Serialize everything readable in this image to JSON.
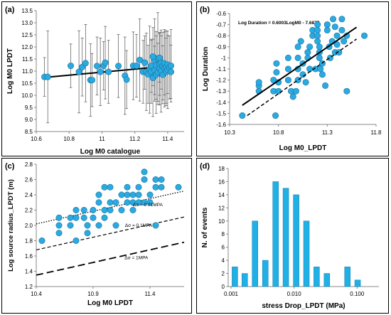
{
  "chart_data": [
    {
      "id": "a",
      "panel_label": "(a)",
      "type": "scatter",
      "title": "",
      "xlabel": "Log M0 catalogue",
      "ylabel": "Log M0 LPDT",
      "xlim": [
        10.6,
        11.5
      ],
      "ylim": [
        8.5,
        13.5
      ],
      "x_ticks": [
        "10.6",
        "10.8",
        "11",
        "11.2",
        "11.4"
      ],
      "y_ticks": [
        "8.5",
        "9.0",
        "9.5",
        "10.0",
        "10.5",
        "11.0",
        "11.5",
        "12.0",
        "12.5",
        "13.0",
        "13.5"
      ],
      "grid": false,
      "trendline": {
        "x": [
          10.67,
          11.42
        ],
        "y": [
          10.75,
          11.22
        ]
      },
      "points": [
        {
          "x": 10.65,
          "y": 10.76,
          "err": 0.8
        },
        {
          "x": 10.67,
          "y": 10.76,
          "err": 1.9
        },
        {
          "x": 10.81,
          "y": 11.22,
          "err": 0.9
        },
        {
          "x": 10.86,
          "y": 10.97,
          "err": 1.7
        },
        {
          "x": 10.88,
          "y": 11.17,
          "err": 1.2
        },
        {
          "x": 10.9,
          "y": 11.33,
          "err": 1.6
        },
        {
          "x": 10.93,
          "y": 10.63,
          "err": 1.5
        },
        {
          "x": 10.94,
          "y": 10.63,
          "err": 1.1
        },
        {
          "x": 10.97,
          "y": 11.21,
          "err": 1.2
        },
        {
          "x": 10.99,
          "y": 10.97,
          "err": 1.4
        },
        {
          "x": 11.01,
          "y": 11.22,
          "err": 1.0
        },
        {
          "x": 11.02,
          "y": 11.35,
          "err": 1.5
        },
        {
          "x": 11.04,
          "y": 10.97,
          "err": 1.3
        },
        {
          "x": 11.1,
          "y": 11.21,
          "err": 1.3
        },
        {
          "x": 11.14,
          "y": 10.81,
          "err": 1.6
        },
        {
          "x": 11.15,
          "y": 10.65,
          "err": 1.2
        },
        {
          "x": 11.19,
          "y": 11.22,
          "err": 1.4
        },
        {
          "x": 11.21,
          "y": 11.22,
          "err": 1.3
        },
        {
          "x": 11.23,
          "y": 11.46,
          "err": 1.7
        },
        {
          "x": 11.25,
          "y": 10.97,
          "err": 1.3
        },
        {
          "x": 11.26,
          "y": 11.35,
          "err": 1.1
        },
        {
          "x": 11.27,
          "y": 10.97,
          "err": 1.6
        },
        {
          "x": 11.28,
          "y": 10.87,
          "err": 1.2
        },
        {
          "x": 11.29,
          "y": 11.06,
          "err": 1.8
        },
        {
          "x": 11.3,
          "y": 10.97,
          "err": 1.3
        },
        {
          "x": 11.3,
          "y": 11.22,
          "err": 1.1
        },
        {
          "x": 11.31,
          "y": 10.72,
          "err": 1.6
        },
        {
          "x": 11.32,
          "y": 11.46,
          "err": 1.7
        },
        {
          "x": 11.32,
          "y": 11.03,
          "err": 1.0
        },
        {
          "x": 11.33,
          "y": 11.24,
          "err": 1.4
        },
        {
          "x": 11.33,
          "y": 10.85,
          "err": 1.6
        },
        {
          "x": 11.34,
          "y": 11.52,
          "err": 1.9
        },
        {
          "x": 11.34,
          "y": 10.95,
          "err": 1.2
        },
        {
          "x": 11.35,
          "y": 11.1,
          "err": 1.5
        },
        {
          "x": 11.35,
          "y": 11.3,
          "err": 1.3
        },
        {
          "x": 11.36,
          "y": 11.0,
          "err": 1.7
        },
        {
          "x": 11.36,
          "y": 11.36,
          "err": 1.1
        },
        {
          "x": 11.37,
          "y": 11.21,
          "err": 1.4
        },
        {
          "x": 11.37,
          "y": 10.85,
          "err": 1.2
        },
        {
          "x": 11.38,
          "y": 11.12,
          "err": 1.6
        },
        {
          "x": 11.38,
          "y": 11.32,
          "err": 1.3
        },
        {
          "x": 11.39,
          "y": 11.17,
          "err": 1.5
        },
        {
          "x": 11.39,
          "y": 10.97,
          "err": 1.4
        },
        {
          "x": 11.4,
          "y": 11.27,
          "err": 1.2
        },
        {
          "x": 11.4,
          "y": 11.05,
          "err": 1.6
        },
        {
          "x": 11.41,
          "y": 11.15,
          "err": 1.3
        },
        {
          "x": 11.42,
          "y": 11.22,
          "err": 1.5
        },
        {
          "x": 11.42,
          "y": 10.97,
          "err": 1.1
        },
        {
          "x": 11.31,
          "y": 11.6,
          "err": 1.2
        },
        {
          "x": 11.35,
          "y": 11.55,
          "err": 1.0
        }
      ]
    },
    {
      "id": "b",
      "panel_label": "(b)",
      "type": "scatter",
      "title": "",
      "xlabel": "Log M0_LPDT",
      "ylabel": "Log Duration",
      "xlim": [
        10.3,
        11.8
      ],
      "ylim": [
        -1.6,
        -0.6
      ],
      "x_ticks": [
        "10.3",
        "10.8",
        "11.3",
        "11.8"
      ],
      "y_ticks": [
        "-1.6",
        "-1.5",
        "-1.4",
        "-1.3",
        "-1.2",
        "-1.1",
        "-1",
        "-0.9",
        "-0.8",
        "-0.7",
        "-0.6"
      ],
      "grid": false,
      "equation": "Log Duration = 0.6003LogM0 - 7.6877",
      "regression": {
        "x": [
          10.43,
          11.6
        ],
        "y": [
          -1.427,
          -0.724
        ]
      },
      "dashed_line": {
        "x": [
          10.48,
          11.6
        ],
        "y": [
          -1.52,
          -0.83
        ]
      },
      "points": [
        {
          "x": 10.43,
          "y": -1.52
        },
        {
          "x": 10.6,
          "y": -1.3
        },
        {
          "x": 10.6,
          "y": -1.25
        },
        {
          "x": 10.6,
          "y": -1.22
        },
        {
          "x": 10.75,
          "y": -1.3
        },
        {
          "x": 10.75,
          "y": -1.2
        },
        {
          "x": 10.77,
          "y": -1.52
        },
        {
          "x": 10.78,
          "y": -1.05
        },
        {
          "x": 10.78,
          "y": -1.13
        },
        {
          "x": 10.8,
          "y": -1.22
        },
        {
          "x": 10.8,
          "y": -1.3
        },
        {
          "x": 10.9,
          "y": -1.2
        },
        {
          "x": 10.9,
          "y": -1.1
        },
        {
          "x": 10.9,
          "y": -1.0
        },
        {
          "x": 10.93,
          "y": -1.3
        },
        {
          "x": 10.95,
          "y": -1.35
        },
        {
          "x": 10.98,
          "y": -1.3
        },
        {
          "x": 11.0,
          "y": -1.2
        },
        {
          "x": 11.0,
          "y": -1.1
        },
        {
          "x": 11.0,
          "y": -1.0
        },
        {
          "x": 11.0,
          "y": -0.9
        },
        {
          "x": 11.03,
          "y": -0.85
        },
        {
          "x": 11.05,
          "y": -1.05
        },
        {
          "x": 11.05,
          "y": -1.15
        },
        {
          "x": 11.08,
          "y": -1.22
        },
        {
          "x": 11.1,
          "y": -1.0
        },
        {
          "x": 11.1,
          "y": -0.95
        },
        {
          "x": 11.12,
          "y": -0.9
        },
        {
          "x": 11.12,
          "y": -1.1
        },
        {
          "x": 11.15,
          "y": -0.8
        },
        {
          "x": 11.15,
          "y": -0.75
        },
        {
          "x": 11.18,
          "y": -1.1
        },
        {
          "x": 11.2,
          "y": -0.7
        },
        {
          "x": 11.2,
          "y": -0.75
        },
        {
          "x": 11.2,
          "y": -0.8
        },
        {
          "x": 11.2,
          "y": -0.85
        },
        {
          "x": 11.22,
          "y": -0.9
        },
        {
          "x": 11.22,
          "y": -0.95
        },
        {
          "x": 11.22,
          "y": -1.0
        },
        {
          "x": 11.23,
          "y": -1.1
        },
        {
          "x": 11.25,
          "y": -1.05
        },
        {
          "x": 11.25,
          "y": -1.15
        },
        {
          "x": 11.28,
          "y": -1.25
        },
        {
          "x": 11.3,
          "y": -0.7
        },
        {
          "x": 11.3,
          "y": -0.75
        },
        {
          "x": 11.32,
          "y": -0.9
        },
        {
          "x": 11.33,
          "y": -1.0
        },
        {
          "x": 11.35,
          "y": -0.85
        },
        {
          "x": 11.36,
          "y": -0.65
        },
        {
          "x": 11.38,
          "y": -0.72
        },
        {
          "x": 11.38,
          "y": -0.95
        },
        {
          "x": 11.4,
          "y": -0.8
        },
        {
          "x": 11.4,
          "y": -0.88
        },
        {
          "x": 11.42,
          "y": -0.95
        },
        {
          "x": 11.45,
          "y": -0.65
        },
        {
          "x": 11.45,
          "y": -0.75
        },
        {
          "x": 11.47,
          "y": -0.85
        },
        {
          "x": 11.5,
          "y": -1.3
        },
        {
          "x": 11.5,
          "y": -0.8
        },
        {
          "x": 11.68,
          "y": -0.8
        }
      ]
    },
    {
      "id": "c",
      "panel_label": "(c)",
      "type": "scatter",
      "title": "",
      "xlabel": "Log M0 LPDT",
      "ylabel": "Log source radius_LPDT (m)",
      "xlim": [
        10.4,
        11.7
      ],
      "ylim": [
        1.2,
        2.8
      ],
      "x_ticks": [
        "10.4",
        "10.9",
        "11.4"
      ],
      "y_ticks": [
        "1.2",
        "1.4",
        "1.6",
        "1.8",
        "2.0",
        "2.2",
        "2.4",
        "2.6",
        "2.8"
      ],
      "grid": false,
      "lines": [
        {
          "name": "Δσ = 0.01MPA",
          "style": "dotted",
          "x": [
            10.4,
            11.7
          ],
          "y": [
            2.02,
            2.45
          ]
        },
        {
          "name": "Δσ = 0.1MPA",
          "style": "dashed",
          "x": [
            10.4,
            11.7
          ],
          "y": [
            1.68,
            2.11
          ]
        },
        {
          "name": "Δσ = 1MPA",
          "style": "longdash",
          "x": [
            10.4,
            11.7
          ],
          "y": [
            1.35,
            1.78
          ]
        }
      ],
      "line_labels": [
        "Δσ = 0.01MPA",
        "Δσ = 0.1MPA",
        "Δσ = 1MPA"
      ],
      "points": [
        {
          "x": 10.45,
          "y": 1.8
        },
        {
          "x": 10.6,
          "y": 1.9
        },
        {
          "x": 10.6,
          "y": 2.0
        },
        {
          "x": 10.6,
          "y": 2.1
        },
        {
          "x": 10.7,
          "y": 2.0
        },
        {
          "x": 10.7,
          "y": 2.1
        },
        {
          "x": 10.75,
          "y": 1.8
        },
        {
          "x": 10.75,
          "y": 2.2
        },
        {
          "x": 10.75,
          "y": 2.1
        },
        {
          "x": 10.82,
          "y": 2.1
        },
        {
          "x": 10.82,
          "y": 2.2
        },
        {
          "x": 10.85,
          "y": 1.9
        },
        {
          "x": 10.85,
          "y": 2.0
        },
        {
          "x": 10.9,
          "y": 2.1
        },
        {
          "x": 10.9,
          "y": 2.2
        },
        {
          "x": 10.95,
          "y": 2.0
        },
        {
          "x": 10.95,
          "y": 2.3
        },
        {
          "x": 10.95,
          "y": 2.4
        },
        {
          "x": 11.0,
          "y": 2.1
        },
        {
          "x": 11.0,
          "y": 2.2
        },
        {
          "x": 11.0,
          "y": 2.5
        },
        {
          "x": 11.05,
          "y": 2.2
        },
        {
          "x": 11.05,
          "y": 2.3
        },
        {
          "x": 11.05,
          "y": 2.5
        },
        {
          "x": 11.1,
          "y": 2.0
        },
        {
          "x": 11.1,
          "y": 2.3
        },
        {
          "x": 11.15,
          "y": 2.4
        },
        {
          "x": 11.15,
          "y": 2.2
        },
        {
          "x": 11.2,
          "y": 2.3
        },
        {
          "x": 11.2,
          "y": 2.4
        },
        {
          "x": 11.2,
          "y": 2.5
        },
        {
          "x": 11.25,
          "y": 2.2
        },
        {
          "x": 11.25,
          "y": 2.3
        },
        {
          "x": 11.25,
          "y": 2.4
        },
        {
          "x": 11.3,
          "y": 2.3
        },
        {
          "x": 11.3,
          "y": 2.4
        },
        {
          "x": 11.3,
          "y": 2.5
        },
        {
          "x": 11.35,
          "y": 2.3
        },
        {
          "x": 11.35,
          "y": 2.6
        },
        {
          "x": 11.35,
          "y": 2.7
        },
        {
          "x": 11.4,
          "y": 2.4
        },
        {
          "x": 11.4,
          "y": 2.3
        },
        {
          "x": 11.45,
          "y": 2.5
        },
        {
          "x": 11.45,
          "y": 2.6
        },
        {
          "x": 11.45,
          "y": 2.0
        },
        {
          "x": 11.5,
          "y": 2.6
        },
        {
          "x": 11.5,
          "y": 2.5
        },
        {
          "x": 11.65,
          "y": 2.5
        }
      ]
    },
    {
      "id": "d",
      "panel_label": "(d)",
      "type": "bar",
      "title": "",
      "xlabel": "stress Drop_LPDT (MPa)",
      "ylabel": "N. of events",
      "xscale": "log",
      "xlim": [
        0.001,
        0.2
      ],
      "ylim": [
        0,
        18
      ],
      "x_ticks": [
        "0.001",
        "0.010",
        "0.100"
      ],
      "y_ticks": [
        "0",
        "2",
        "4",
        "6",
        "8",
        "10",
        "12",
        "14",
        "16",
        "18"
      ],
      "grid": false,
      "bar_color": "#1fb1e6",
      "bins": [
        {
          "x": 0.00115,
          "value": 3
        },
        {
          "x": 0.00165,
          "value": 2
        },
        {
          "x": 0.0024,
          "value": 10
        },
        {
          "x": 0.0035,
          "value": 4
        },
        {
          "x": 0.0051,
          "value": 16
        },
        {
          "x": 0.0074,
          "value": 15
        },
        {
          "x": 0.0108,
          "value": 14
        },
        {
          "x": 0.0157,
          "value": 10
        },
        {
          "x": 0.0228,
          "value": 3
        },
        {
          "x": 0.0332,
          "value": 2
        },
        {
          "x": 0.0483,
          "value": 0
        },
        {
          "x": 0.0703,
          "value": 3
        },
        {
          "x": 0.102,
          "value": 1
        }
      ]
    }
  ],
  "colors": {
    "marker_fill": "#29abe2",
    "marker_stroke": "#1a6f99",
    "bar": "#1fb1e6",
    "line": "#000000",
    "errorbar": "#555555"
  }
}
